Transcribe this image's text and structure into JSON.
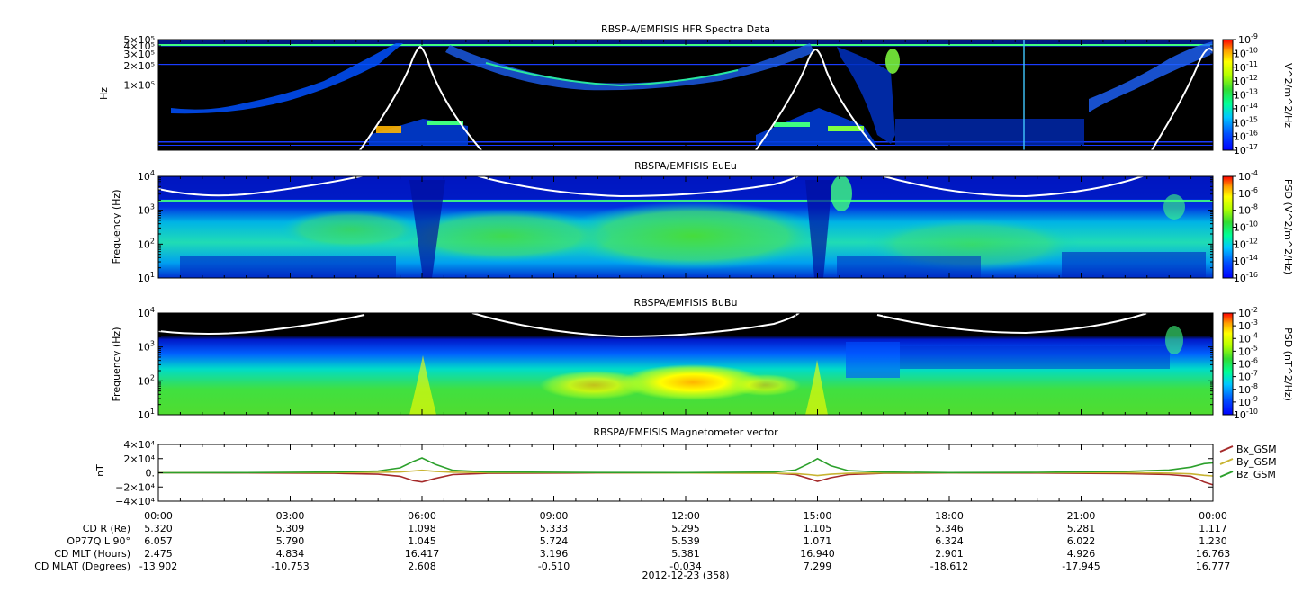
{
  "chart_data": [
    {
      "type": "heatmap",
      "title": "RBSP-A/EMFISIS  HFR Spectra Data",
      "ylabel": "Hz",
      "yscale": "log",
      "ylim": [
        10000,
        500000
      ],
      "ytick_labels": [
        "5×10⁵",
        "4×10⁵",
        "3×10⁵",
        "2×10⁵",
        "1×10⁵"
      ],
      "yticks": [
        500000,
        400000,
        300000,
        200000,
        100000
      ],
      "colorbar_label": "V^2/m^2/Hz",
      "colorbar_exponents": [
        "-9",
        "-10",
        "-11",
        "-12",
        "-13",
        "-14",
        "-15",
        "-16",
        "-17"
      ],
      "overlay": "white plasma-frequency trace peaking near 06:00 and 15:00"
    },
    {
      "type": "heatmap",
      "title": "RBSPA/EMFISIS  EuEu",
      "ylabel": "Frequency (Hz)",
      "yscale": "log",
      "ylim": [
        10,
        10000
      ],
      "ytick_exponents": [
        "4",
        "3",
        "2",
        "1"
      ],
      "colorbar_label": "PSD (V^2/m^2/Hz)",
      "colorbar_exponents": [
        "-4",
        "-6",
        "-8",
        "-10",
        "-12",
        "-14",
        "-16"
      ],
      "overlay": "white gyrofrequency trace"
    },
    {
      "type": "heatmap",
      "title": "RBSPA/EMFISIS  BuBu",
      "ylabel": "Frequency (Hz)",
      "yscale": "log",
      "ylim": [
        10,
        10000
      ],
      "ytick_exponents": [
        "4",
        "3",
        "2",
        "1"
      ],
      "colorbar_label": "PSD (nT^2/Hz)",
      "colorbar_exponents": [
        "-2",
        "-3",
        "-4",
        "-5",
        "-6",
        "-7",
        "-8",
        "-9",
        "-10"
      ],
      "overlay": "white gyrofrequency trace"
    },
    {
      "type": "line",
      "title": "RBSPA/EMFISIS  Magnetometer vector",
      "ylabel": "nT",
      "ylim": [
        -40000,
        40000
      ],
      "ytick_labels": [
        "4×10⁴",
        "2×10⁴",
        "0.",
        "−2×10⁴",
        "−4×10⁴"
      ],
      "yticks": [
        40000,
        20000,
        0,
        -20000,
        -40000
      ],
      "x_hours": [
        0,
        2,
        4,
        5,
        5.5,
        5.8,
        6.0,
        6.3,
        6.7,
        7.5,
        10,
        12,
        14,
        14.5,
        14.8,
        15.0,
        15.3,
        15.7,
        16.5,
        18,
        20,
        22,
        23,
        23.5,
        23.8,
        24
      ],
      "series": [
        {
          "name": "Bx_GSM",
          "color": "#a52a2a",
          "values": [
            0,
            -300,
            -800,
            -2000,
            -5000,
            -11000,
            -13000,
            -8000,
            -2500,
            -800,
            -300,
            -200,
            -500,
            -2500,
            -8000,
            -12000,
            -7000,
            -2500,
            -800,
            -200,
            -400,
            -1200,
            -2500,
            -5000,
            -13000,
            -17000
          ]
        },
        {
          "name": "By_GSM",
          "color": "#c8b432",
          "values": [
            0,
            200,
            300,
            600,
            1200,
            2500,
            3500,
            2000,
            800,
            300,
            100,
            -300,
            -600,
            -1200,
            -2500,
            -4000,
            -2000,
            -800,
            -300,
            100,
            200,
            200,
            -500,
            -1500,
            -3500,
            -4500
          ]
        },
        {
          "name": "Bz_GSM",
          "color": "#2ca02c",
          "values": [
            0,
            300,
            1000,
            2500,
            7000,
            16000,
            21000,
            12000,
            3500,
            1200,
            400,
            300,
            1000,
            4000,
            13000,
            20000,
            10000,
            3000,
            1000,
            300,
            600,
            2000,
            4000,
            8000,
            13000,
            14000
          ]
        }
      ],
      "legend": "right"
    }
  ],
  "time_axis": {
    "labels": [
      "00:00",
      "03:00",
      "06:00",
      "09:00",
      "12:00",
      "15:00",
      "18:00",
      "21:00",
      "00:00"
    ],
    "date": "2012-12-23 (358)"
  },
  "ephemeris": {
    "rows": [
      {
        "label": "CD R (Re)",
        "values": [
          "5.320",
          "5.309",
          "1.098",
          "5.333",
          "5.295",
          "1.105",
          "5.346",
          "5.281",
          "1.117"
        ]
      },
      {
        "label": "OP77Q L 90°",
        "values": [
          "6.057",
          "5.790",
          "1.045",
          "5.724",
          "5.539",
          "1.071",
          "6.324",
          "6.022",
          "1.230"
        ]
      },
      {
        "label": "CD MLT (Hours)",
        "values": [
          "2.475",
          "4.834",
          "16.417",
          "3.196",
          "5.381",
          "16.940",
          "2.901",
          "4.926",
          "16.763"
        ]
      },
      {
        "label": "CD MLAT (Degrees)",
        "values": [
          "-13.902",
          "-10.753",
          "2.608",
          "-0.510",
          "-0.034",
          "7.299",
          "-18.612",
          "-17.945",
          "16.777"
        ]
      }
    ]
  },
  "colors": {
    "spectrum_background": "#000000",
    "colormap": [
      "#0000ff",
      "#00c8ff",
      "#00ff96",
      "#32dc32",
      "#b4ff00",
      "#ffff00",
      "#ffa000",
      "#ff0000"
    ]
  }
}
